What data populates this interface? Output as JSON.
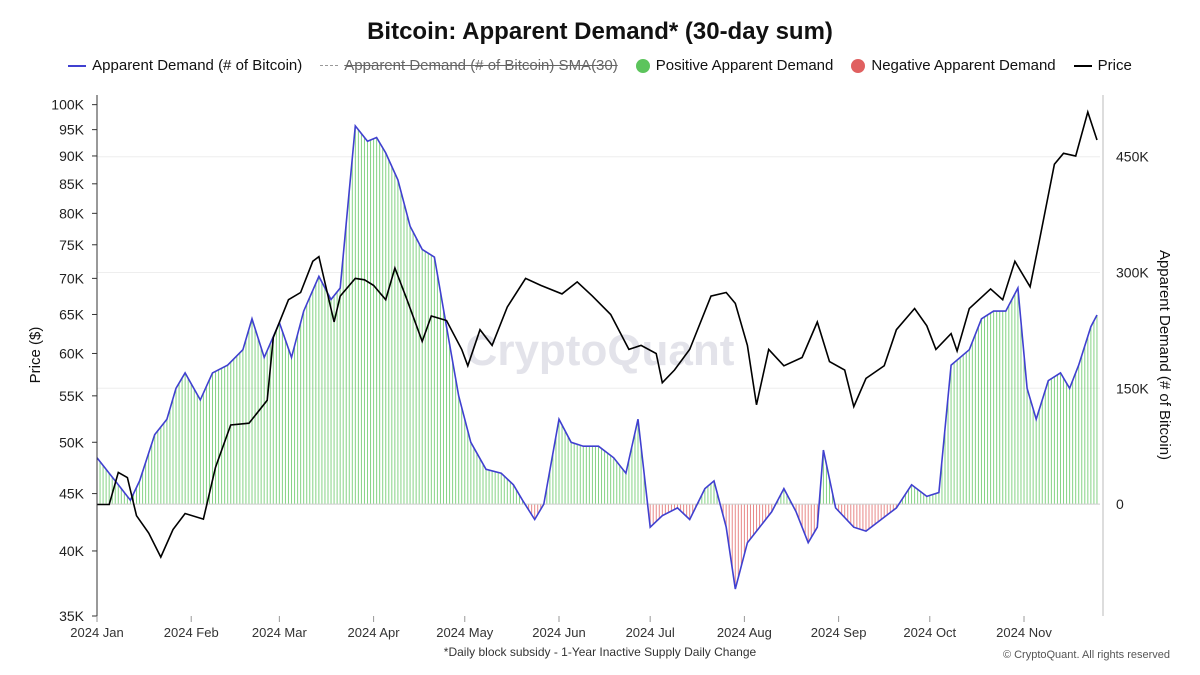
{
  "title": "Bitcoin: Apparent Demand* (30-day sum)",
  "legend": {
    "demand": "Apparent Demand (# of Bitcoin)",
    "sma": "Apparent Demand (# of Bitcoin)  SMA(30)",
    "positive": "Positive Apparent Demand",
    "negative": "Negative Apparent Demand",
    "price": "Price"
  },
  "colors": {
    "demand_line": "#4040d0",
    "positive": "#5cc45c",
    "negative": "#e06060",
    "price": "#000000"
  },
  "watermark": "CryptoQuant",
  "footnote": "*Daily block subsidy - 1-Year Inactive Supply Daily Change",
  "credit": "© CryptoQuant. All rights reserved",
  "chart_data": {
    "type": "line",
    "title": "Bitcoin: Apparent Demand* (30-day sum)",
    "x_axis": {
      "ticks": [
        "2024 Jan",
        "2024 Feb",
        "2024 Mar",
        "2024 Apr",
        "2024 May",
        "2024 Jun",
        "2024 Jul",
        "2024 Aug",
        "2024 Sep",
        "2024 Oct",
        "2024 Nov"
      ],
      "range": [
        "2024-01-01",
        "2024-11-26"
      ]
    },
    "y_left": {
      "label": "Price ($)",
      "scale": "log",
      "range": [
        35000,
        102000
      ],
      "ticks": [
        35000,
        40000,
        45000,
        50000,
        55000,
        60000,
        65000,
        70000,
        75000,
        80000,
        85000,
        90000,
        95000,
        100000
      ],
      "tick_labels": [
        "35K",
        "40K",
        "45K",
        "50K",
        "55K",
        "60K",
        "65K",
        "70K",
        "75K",
        "80K",
        "85K",
        "90K",
        "95K",
        "100K"
      ]
    },
    "y_right": {
      "label": "Apparent Demand (# of Bitcoin)",
      "range": [
        -145000,
        530000
      ],
      "ticks": [
        0,
        150000,
        300000,
        450000
      ],
      "tick_labels": [
        "0",
        "150K",
        "300K",
        "450K"
      ]
    },
    "series": [
      {
        "name": "Apparent Demand (# of Bitcoin)",
        "axis": "right",
        "points": [
          [
            "2024-01-01",
            60000
          ],
          [
            "2024-01-05",
            40000
          ],
          [
            "2024-01-08",
            25000
          ],
          [
            "2024-01-12",
            5000
          ],
          [
            "2024-01-15",
            30000
          ],
          [
            "2024-01-20",
            90000
          ],
          [
            "2024-01-24",
            110000
          ],
          [
            "2024-01-27",
            150000
          ],
          [
            "2024-01-30",
            170000
          ],
          [
            "2024-02-04",
            135000
          ],
          [
            "2024-02-08",
            170000
          ],
          [
            "2024-02-13",
            180000
          ],
          [
            "2024-02-18",
            200000
          ],
          [
            "2024-02-21",
            240000
          ],
          [
            "2024-02-25",
            190000
          ],
          [
            "2024-03-01",
            235000
          ],
          [
            "2024-03-05",
            190000
          ],
          [
            "2024-03-09",
            250000
          ],
          [
            "2024-03-14",
            295000
          ],
          [
            "2024-03-18",
            265000
          ],
          [
            "2024-03-21",
            280000
          ],
          [
            "2024-03-26",
            490000
          ],
          [
            "2024-03-30",
            470000
          ],
          [
            "2024-04-02",
            475000
          ],
          [
            "2024-04-05",
            455000
          ],
          [
            "2024-04-09",
            420000
          ],
          [
            "2024-04-13",
            360000
          ],
          [
            "2024-04-17",
            330000
          ],
          [
            "2024-04-21",
            320000
          ],
          [
            "2024-04-25",
            230000
          ],
          [
            "2024-04-29",
            140000
          ],
          [
            "2024-05-03",
            80000
          ],
          [
            "2024-05-08",
            45000
          ],
          [
            "2024-05-13",
            40000
          ],
          [
            "2024-05-17",
            25000
          ],
          [
            "2024-05-20",
            5000
          ],
          [
            "2024-05-24",
            -20000
          ],
          [
            "2024-05-27",
            0
          ],
          [
            "2024-06-01",
            110000
          ],
          [
            "2024-06-05",
            80000
          ],
          [
            "2024-06-09",
            75000
          ],
          [
            "2024-06-14",
            75000
          ],
          [
            "2024-06-19",
            60000
          ],
          [
            "2024-06-23",
            40000
          ],
          [
            "2024-06-27",
            110000
          ],
          [
            "2024-07-01",
            -30000
          ],
          [
            "2024-07-05",
            -15000
          ],
          [
            "2024-07-10",
            -5000
          ],
          [
            "2024-07-14",
            -20000
          ],
          [
            "2024-07-19",
            20000
          ],
          [
            "2024-07-22",
            30000
          ],
          [
            "2024-07-26",
            -30000
          ],
          [
            "2024-07-29",
            -110000
          ],
          [
            "2024-08-02",
            -50000
          ],
          [
            "2024-08-06",
            -30000
          ],
          [
            "2024-08-10",
            -10000
          ],
          [
            "2024-08-14",
            20000
          ],
          [
            "2024-08-18",
            -10000
          ],
          [
            "2024-08-22",
            -50000
          ],
          [
            "2024-08-25",
            -30000
          ],
          [
            "2024-08-27",
            70000
          ],
          [
            "2024-08-31",
            -5000
          ],
          [
            "2024-09-06",
            -30000
          ],
          [
            "2024-09-10",
            -35000
          ],
          [
            "2024-09-15",
            -20000
          ],
          [
            "2024-09-20",
            -5000
          ],
          [
            "2024-09-25",
            25000
          ],
          [
            "2024-09-30",
            10000
          ],
          [
            "2024-10-04",
            15000
          ],
          [
            "2024-10-08",
            180000
          ],
          [
            "2024-10-14",
            200000
          ],
          [
            "2024-10-18",
            240000
          ],
          [
            "2024-10-22",
            250000
          ],
          [
            "2024-10-26",
            250000
          ],
          [
            "2024-10-30",
            280000
          ],
          [
            "2024-11-02",
            150000
          ],
          [
            "2024-11-05",
            110000
          ],
          [
            "2024-11-09",
            160000
          ],
          [
            "2024-11-13",
            170000
          ],
          [
            "2024-11-16",
            150000
          ],
          [
            "2024-11-19",
            180000
          ],
          [
            "2024-11-23",
            230000
          ],
          [
            "2024-11-25",
            245000
          ]
        ]
      },
      {
        "name": "Price",
        "axis": "left",
        "points": [
          [
            "2024-01-01",
            44000
          ],
          [
            "2024-01-05",
            44000
          ],
          [
            "2024-01-08",
            47000
          ],
          [
            "2024-01-11",
            46500
          ],
          [
            "2024-01-14",
            43000
          ],
          [
            "2024-01-18",
            41500
          ],
          [
            "2024-01-22",
            39500
          ],
          [
            "2024-01-26",
            41800
          ],
          [
            "2024-01-30",
            43200
          ],
          [
            "2024-02-05",
            42700
          ],
          [
            "2024-02-09",
            47500
          ],
          [
            "2024-02-14",
            51800
          ],
          [
            "2024-02-20",
            52000
          ],
          [
            "2024-02-26",
            54500
          ],
          [
            "2024-02-28",
            62000
          ],
          [
            "2024-03-04",
            67000
          ],
          [
            "2024-03-08",
            68000
          ],
          [
            "2024-03-12",
            72500
          ],
          [
            "2024-03-14",
            73200
          ],
          [
            "2024-03-19",
            64000
          ],
          [
            "2024-03-21",
            67500
          ],
          [
            "2024-03-26",
            70000
          ],
          [
            "2024-03-29",
            69800
          ],
          [
            "2024-04-01",
            69000
          ],
          [
            "2024-04-05",
            67000
          ],
          [
            "2024-04-08",
            71500
          ],
          [
            "2024-04-12",
            67000
          ],
          [
            "2024-04-17",
            61500
          ],
          [
            "2024-04-20",
            64800
          ],
          [
            "2024-04-25",
            64200
          ],
          [
            "2024-04-30",
            60500
          ],
          [
            "2024-05-02",
            58500
          ],
          [
            "2024-05-06",
            63000
          ],
          [
            "2024-05-10",
            61000
          ],
          [
            "2024-05-15",
            66000
          ],
          [
            "2024-05-21",
            70000
          ],
          [
            "2024-05-26",
            69000
          ],
          [
            "2024-06-02",
            67800
          ],
          [
            "2024-06-07",
            69500
          ],
          [
            "2024-06-12",
            67500
          ],
          [
            "2024-06-18",
            65000
          ],
          [
            "2024-06-24",
            60500
          ],
          [
            "2024-06-28",
            61000
          ],
          [
            "2024-07-03",
            60000
          ],
          [
            "2024-07-05",
            56500
          ],
          [
            "2024-07-09",
            58000
          ],
          [
            "2024-07-14",
            60500
          ],
          [
            "2024-07-21",
            67500
          ],
          [
            "2024-07-26",
            68000
          ],
          [
            "2024-07-29",
            66500
          ],
          [
            "2024-08-02",
            61000
          ],
          [
            "2024-08-05",
            54000
          ],
          [
            "2024-08-09",
            60500
          ],
          [
            "2024-08-14",
            58500
          ],
          [
            "2024-08-20",
            59500
          ],
          [
            "2024-08-25",
            64000
          ],
          [
            "2024-08-29",
            59000
          ],
          [
            "2024-09-03",
            58000
          ],
          [
            "2024-09-06",
            53800
          ],
          [
            "2024-09-10",
            57000
          ],
          [
            "2024-09-16",
            58500
          ],
          [
            "2024-09-20",
            63000
          ],
          [
            "2024-09-26",
            65800
          ],
          [
            "2024-09-30",
            63500
          ],
          [
            "2024-10-03",
            60500
          ],
          [
            "2024-10-08",
            62500
          ],
          [
            "2024-10-10",
            60300
          ],
          [
            "2024-10-14",
            65800
          ],
          [
            "2024-10-21",
            68500
          ],
          [
            "2024-10-25",
            67000
          ],
          [
            "2024-10-29",
            72500
          ],
          [
            "2024-11-03",
            68800
          ],
          [
            "2024-11-06",
            75500
          ],
          [
            "2024-11-11",
            88500
          ],
          [
            "2024-11-14",
            90500
          ],
          [
            "2024-11-18",
            90000
          ],
          [
            "2024-11-22",
            98500
          ],
          [
            "2024-11-25",
            93000
          ]
        ]
      }
    ],
    "legend_placement": "top",
    "grid": "horizontal"
  }
}
